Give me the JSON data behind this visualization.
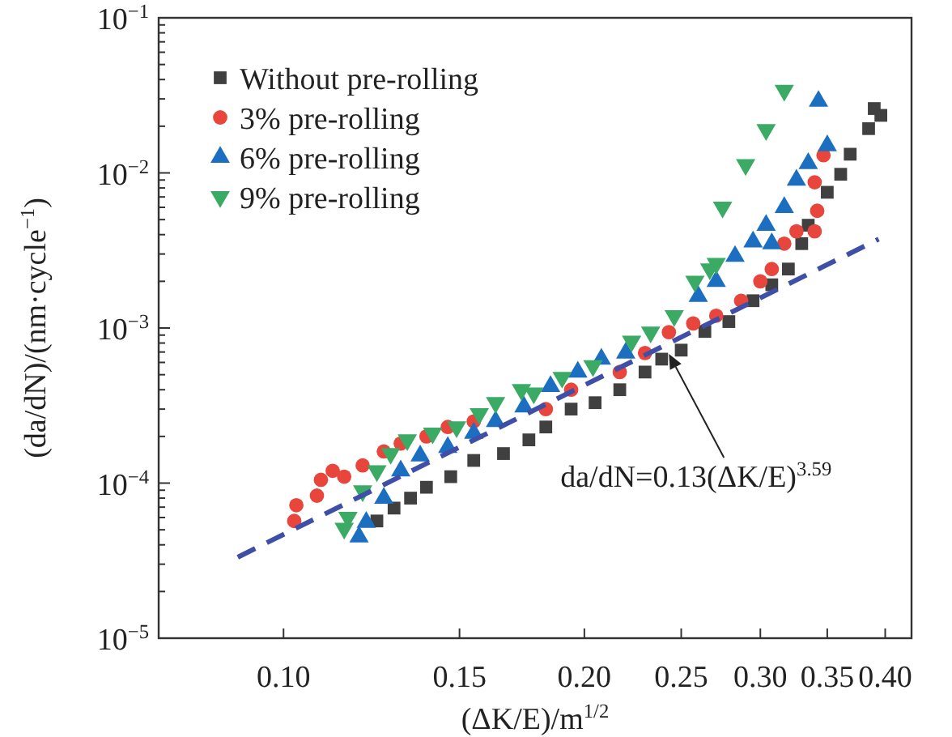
{
  "chart_data": {
    "type": "scatter",
    "xlabel": "(ΔK/E)/m$^{1/2}$",
    "ylabel": "(da/dN)/(nm·cycle$^{−1}$)",
    "log": "xy",
    "grid": false,
    "legend": "top left",
    "xlim": [
      0.075,
      0.425
    ],
    "xticks": [
      {
        "value": 0.1,
        "label": "0.10"
      },
      0.15,
      {
        "value": 0.2,
        "label": "0.20"
      },
      0.25,
      {
        "value": 0.3,
        "label": "0.30"
      },
      0.35,
      {
        "value": 0.4,
        "label": "0.40"
      }
    ],
    "ylim": [
      1e-05,
      0.1
    ],
    "yticks": [
      {
        "value": 1e-05,
        "label": "10$^{−5}$"
      },
      {
        "value": 0.0001,
        "label": "10$^{−4}$"
      },
      {
        "value": 0.001,
        "label": "10$^{−3}$"
      },
      {
        "value": 0.01,
        "label": "10$^{−2}$"
      },
      {
        "value": 0.1,
        "label": "10$^{−1}$"
      }
    ],
    "series": [
      {
        "name": "Without pre-rolling",
        "color": "#404040",
        "marker": "square",
        "x": [
          0.124,
          0.129,
          0.134,
          0.139,
          0.147,
          0.155,
          0.166,
          0.176,
          0.183,
          0.194,
          0.205,
          0.217,
          0.23,
          0.239,
          0.25,
          0.264,
          0.279,
          0.295,
          0.308,
          0.32,
          0.33,
          0.335,
          0.35,
          0.361,
          0.369,
          0.385,
          0.39,
          0.396
        ],
        "values": [
          5.7e-05,
          6.9e-05,
          8e-05,
          9.4e-05,
          0.00011,
          0.00014,
          0.000155,
          0.00019,
          0.00023,
          0.0003,
          0.00033,
          0.0004,
          0.00052,
          0.00063,
          0.00072,
          0.00095,
          0.0011,
          0.0015,
          0.0019,
          0.0024,
          0.0035,
          0.0046,
          0.0075,
          0.0098,
          0.0132,
          0.0193,
          0.026,
          0.0235
        ]
      },
      {
        "name": "3% pre-rolling",
        "color": "#e8453c",
        "marker": "circle",
        "x": [
          0.1025,
          0.103,
          0.108,
          0.109,
          0.112,
          0.115,
          0.12,
          0.126,
          0.131,
          0.139,
          0.146,
          0.155,
          0.183,
          0.194,
          0.217,
          0.23,
          0.243,
          0.257,
          0.271,
          0.287,
          0.3,
          0.308,
          0.317,
          0.326,
          0.34,
          0.342,
          0.34,
          0.347
        ],
        "values": [
          5.7e-05,
          7.2e-05,
          8.3e-05,
          0.000105,
          0.00012,
          0.00011,
          0.00013,
          0.00016,
          0.00018,
          0.0002,
          0.00023,
          0.00025,
          0.0003,
          0.0004,
          0.00052,
          0.00069,
          0.00094,
          0.00107,
          0.0012,
          0.0015,
          0.002,
          0.0024,
          0.0035,
          0.0042,
          0.0042,
          0.0057,
          0.0087,
          0.013
        ]
      },
      {
        "name": "6% pre-rolling",
        "color": "#1c6fc0",
        "marker": "triangle",
        "x": [
          0.119,
          0.121,
          0.126,
          0.131,
          0.137,
          0.146,
          0.155,
          0.163,
          0.174,
          0.185,
          0.197,
          0.208,
          0.22,
          0.26,
          0.271,
          0.283,
          0.295,
          0.304,
          0.308,
          0.317,
          0.326,
          0.335,
          0.35,
          0.343
        ],
        "values": [
          4.5e-05,
          5.6e-05,
          8e-05,
          0.00012,
          0.00015,
          0.00017,
          0.00021,
          0.00025,
          0.00031,
          0.00042,
          0.00052,
          0.00063,
          0.00069,
          0.0016,
          0.002,
          0.0029,
          0.0036,
          0.0046,
          0.0035,
          0.006,
          0.009,
          0.0115,
          0.015,
          0.029
        ]
      },
      {
        "name": "9% pre-rolling",
        "color": "#3aaa64",
        "marker": "triangle-down",
        "x": [
          0.115,
          0.116,
          0.12,
          0.124,
          0.128,
          0.133,
          0.141,
          0.149,
          0.157,
          0.163,
          0.173,
          0.178,
          0.19,
          0.204,
          0.223,
          0.233,
          0.246,
          0.258,
          0.267,
          0.271,
          0.275,
          0.29,
          0.304,
          0.317
        ],
        "values": [
          5.1e-05,
          6e-05,
          8.9e-05,
          0.00012,
          0.000155,
          0.00019,
          0.00021,
          0.00023,
          0.00028,
          0.00033,
          0.0004,
          0.00038,
          0.00048,
          0.00057,
          0.00082,
          0.00094,
          0.0012,
          0.002,
          0.0024,
          0.0026,
          0.006,
          0.0113,
          0.019,
          0.034
        ]
      },
      {
        "type": "line",
        "color": "#3f4fa8",
        "marker": "none",
        "line_style": "dashed",
        "x": [
          0.09,
          0.394
        ],
        "values": [
          3.33e-05,
          0.00374
        ]
      }
    ],
    "annotations": [
      {
        "text": "da/dN=0.13(ΔK/E)$^{3.59}$",
        "x": 0.243,
        "y": 0.00068
      }
    ]
  }
}
